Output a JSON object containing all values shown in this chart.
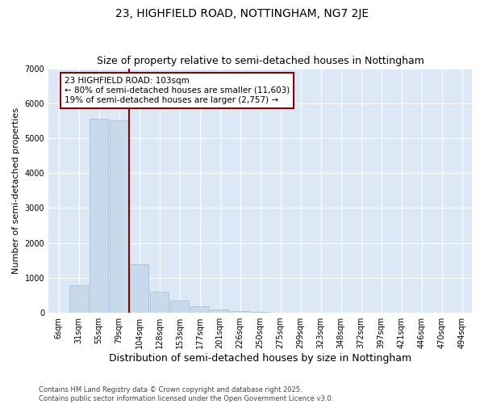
{
  "title": "23, HIGHFIELD ROAD, NOTTINGHAM, NG7 2JE",
  "subtitle": "Size of property relative to semi-detached houses in Nottingham",
  "xlabel": "Distribution of semi-detached houses by size in Nottingham",
  "ylabel": "Number of semi-detached properties",
  "categories": [
    "6sqm",
    "31sqm",
    "55sqm",
    "79sqm",
    "104sqm",
    "128sqm",
    "153sqm",
    "177sqm",
    "201sqm",
    "226sqm",
    "250sqm",
    "275sqm",
    "299sqm",
    "323sqm",
    "348sqm",
    "372sqm",
    "397sqm",
    "421sqm",
    "446sqm",
    "470sqm",
    "494sqm"
  ],
  "values": [
    0,
    800,
    5550,
    5500,
    1400,
    600,
    350,
    180,
    90,
    50,
    25,
    10,
    5,
    0,
    0,
    0,
    0,
    0,
    0,
    0,
    0
  ],
  "bar_color": "#c8d9ec",
  "bar_edge_color": "#9bbcd6",
  "property_line_color": "#8b0000",
  "annotation_text": "23 HIGHFIELD ROAD: 103sqm\n← 80% of semi-detached houses are smaller (11,603)\n19% of semi-detached houses are larger (2,757) →",
  "annotation_box_color": "#8b0000",
  "ylim": [
    0,
    7000
  ],
  "yticks": [
    0,
    1000,
    2000,
    3000,
    4000,
    5000,
    6000,
    7000
  ],
  "bg_color": "#dce8f5",
  "footer": "Contains HM Land Registry data © Crown copyright and database right 2025.\nContains public sector information licensed under the Open Government Licence v3.0.",
  "title_fontsize": 10,
  "subtitle_fontsize": 9,
  "xlabel_fontsize": 9,
  "ylabel_fontsize": 8,
  "tick_fontsize": 7,
  "footer_fontsize": 6
}
